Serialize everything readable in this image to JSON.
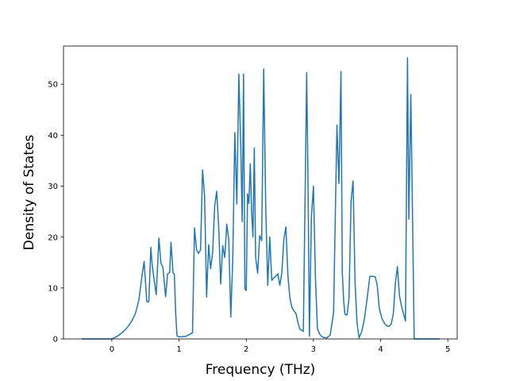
{
  "chart_data": {
    "type": "line",
    "xlabel": "Frequency (THz)",
    "ylabel": "Density of States",
    "xlim": [
      -0.72,
      5.14
    ],
    "ylim": [
      0,
      57.5
    ],
    "xticks": [
      0,
      1,
      2,
      3,
      4,
      5
    ],
    "yticks": [
      0,
      10,
      20,
      30,
      40,
      50
    ],
    "grid": false,
    "line_color": "#1f77b4",
    "series": [
      {
        "x": [
          -0.45,
          -0.3,
          -0.15,
          0.0,
          0.05,
          0.1,
          0.15,
          0.2,
          0.25,
          0.3,
          0.35,
          0.4,
          0.45,
          0.48,
          0.52,
          0.55,
          0.58,
          0.6,
          0.63,
          0.66,
          0.7,
          0.73,
          0.76,
          0.8,
          0.83,
          0.86,
          0.88,
          0.91,
          0.93,
          0.95,
          0.97,
          1.0,
          1.1,
          1.2,
          1.23,
          1.26,
          1.29,
          1.32,
          1.35,
          1.38,
          1.41,
          1.44,
          1.47,
          1.5,
          1.53,
          1.56,
          1.59,
          1.62,
          1.65,
          1.68,
          1.71,
          1.74,
          1.77,
          1.8,
          1.83,
          1.86,
          1.89,
          1.92,
          1.94,
          1.96,
          1.98,
          2.0,
          2.02,
          2.04,
          2.06,
          2.08,
          2.1,
          2.12,
          2.14,
          2.17,
          2.2,
          2.23,
          2.26,
          2.29,
          2.32,
          2.35,
          2.38,
          2.41,
          2.44,
          2.47,
          2.5,
          2.53,
          2.56,
          2.59,
          2.62,
          2.65,
          2.68,
          2.71,
          2.74,
          2.77,
          2.8,
          2.85,
          2.9,
          2.92,
          2.94,
          2.97,
          3.0,
          3.03,
          3.06,
          3.09,
          3.12,
          3.15,
          3.2,
          3.25,
          3.3,
          3.35,
          3.38,
          3.41,
          3.43,
          3.45,
          3.47,
          3.5,
          3.53,
          3.56,
          3.59,
          3.62,
          3.65,
          3.68,
          3.72,
          3.76,
          3.8,
          3.84,
          3.88,
          3.92,
          3.95,
          3.98,
          4.02,
          4.06,
          4.1,
          4.13,
          4.16,
          4.19,
          4.22,
          4.25,
          4.28,
          4.31,
          4.34,
          4.37,
          4.4,
          4.42,
          4.45,
          4.5,
          4.6,
          4.7,
          4.88
        ],
        "y": [
          0,
          0,
          0,
          0,
          0.3,
          0.7,
          1.2,
          1.8,
          2.6,
          3.6,
          5.0,
          7.5,
          12.5,
          15.2,
          7.3,
          7.3,
          18.0,
          14.5,
          11.5,
          8.7,
          19.8,
          14.9,
          14.0,
          8.3,
          12.8,
          13.0,
          19.0,
          13.0,
          12.6,
          5.0,
          0.6,
          0.4,
          0.5,
          1.2,
          21.8,
          17.5,
          16.8,
          17.5,
          33.2,
          28.0,
          8.2,
          18.5,
          13.8,
          17.0,
          26.0,
          29.0,
          22.0,
          10.8,
          18.3,
          16.0,
          22.5,
          19.5,
          4.3,
          16.0,
          40.5,
          26.5,
          52.0,
          37.0,
          23.0,
          52.0,
          9.8,
          9.5,
          28.5,
          26.6,
          34.4,
          25.0,
          20.0,
          37.5,
          16.0,
          12.9,
          20.3,
          19.3,
          53.0,
          26.0,
          10.5,
          20.0,
          11.5,
          12.0,
          12.3,
          12.8,
          10.5,
          13.0,
          19.5,
          22.0,
          12.5,
          8.0,
          6.2,
          5.5,
          5.0,
          3.2,
          1.9,
          1.5,
          52.3,
          30.0,
          0.5,
          24.0,
          30.0,
          12.0,
          2.0,
          1.0,
          0.5,
          0.3,
          0.2,
          0.8,
          5.2,
          42.0,
          30.5,
          52.5,
          13.0,
          7.5,
          4.8,
          4.7,
          8.0,
          27.0,
          31.0,
          11.0,
          3.0,
          0.2,
          1.5,
          4.0,
          8.0,
          12.3,
          12.3,
          12.2,
          10.5,
          6.0,
          4.0,
          3.0,
          2.5,
          2.5,
          3.0,
          5.0,
          11.0,
          14.2,
          8.5,
          6.5,
          5.0,
          3.5,
          55.2,
          23.5,
          48.0,
          0,
          0,
          0,
          0
        ]
      }
    ]
  }
}
